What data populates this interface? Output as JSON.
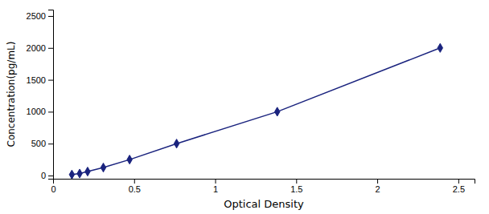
{
  "chart_data": {
    "type": "line",
    "x": [
      0.116,
      0.164,
      0.213,
      0.31,
      0.472,
      0.762,
      1.383,
      2.388
    ],
    "values": [
      15.6,
      31.25,
      62.5,
      125,
      250,
      500,
      1000,
      2000
    ],
    "color": "#1a237e",
    "marker": "diamond",
    "x_label": "Optical Density",
    "y_label": "Concentration(pg/mL)",
    "xlim": [
      0.0,
      2.6
    ],
    "ylim": [
      -50,
      2600
    ],
    "xticks": [
      0,
      0.5,
      1,
      1.5,
      2,
      2.5
    ],
    "yticks": [
      0,
      500,
      1000,
      1500,
      2000,
      2500
    ],
    "grid": false
  }
}
